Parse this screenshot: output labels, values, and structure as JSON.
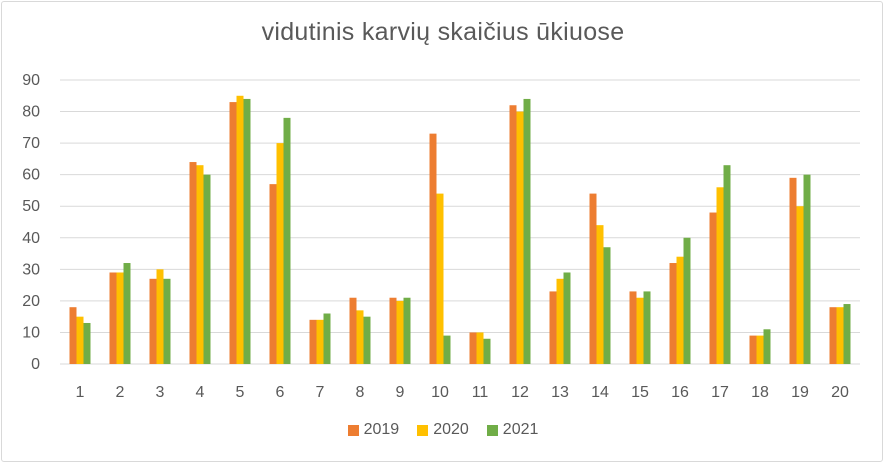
{
  "chart_data": {
    "type": "bar",
    "title": "vidutinis karvių skaičius ūkiuose",
    "xlabel": "",
    "ylabel": "",
    "ylim": [
      0,
      90
    ],
    "yticks": [
      0,
      10,
      20,
      30,
      40,
      50,
      60,
      70,
      80,
      90
    ],
    "grid": true,
    "legend_position": "bottom",
    "categories": [
      "1",
      "2",
      "3",
      "4",
      "5",
      "6",
      "7",
      "8",
      "9",
      "10",
      "11",
      "12",
      "13",
      "14",
      "15",
      "16",
      "17",
      "18",
      "19",
      "20"
    ],
    "series": [
      {
        "name": "2019",
        "color": "#ED7D31",
        "values": [
          18,
          29,
          27,
          64,
          83,
          57,
          14,
          21,
          21,
          73,
          10,
          82,
          23,
          54,
          23,
          32,
          48,
          9,
          59,
          18
        ]
      },
      {
        "name": "2020",
        "color": "#FFC000",
        "values": [
          15,
          29,
          30,
          63,
          85,
          70,
          14,
          17,
          20,
          54,
          10,
          80,
          27,
          44,
          21,
          34,
          56,
          9,
          50,
          18
        ]
      },
      {
        "name": "2021",
        "color": "#70AD47",
        "values": [
          13,
          32,
          27,
          60,
          84,
          78,
          16,
          15,
          21,
          9,
          8,
          84,
          29,
          37,
          23,
          40,
          63,
          11,
          60,
          19
        ]
      }
    ]
  }
}
